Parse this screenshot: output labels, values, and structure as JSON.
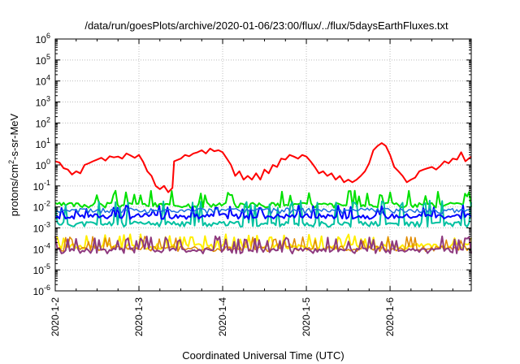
{
  "chart_data": {
    "type": "line",
    "title": "/data/run/goesPlots/archive/2020-01-06/23:00/flux/../flux/5daysEarthFluxes.txt",
    "xlabel": "Coordinated Universal Time (UTC)",
    "ylabel": "protons/cm2-s-sr-MeV",
    "ylabel_parts": {
      "pre": "protons/cm",
      "sup": "2",
      "post": "-s-sr-MeV"
    },
    "ylim": [
      1e-06,
      1000000.0
    ],
    "yscale": "log",
    "xlim": [
      0,
      4.97
    ],
    "grid": true,
    "ytick_exponents": [
      -6,
      -5,
      -4,
      -3,
      -2,
      -1,
      0,
      1,
      2,
      3,
      4,
      5,
      6
    ],
    "xticks": [
      {
        "label": "2020-1-2",
        "x": 0
      },
      {
        "label": "2020-1-3",
        "x": 1
      },
      {
        "label": "2020-1-4",
        "x": 2
      },
      {
        "label": "2020-1-5",
        "x": 3
      },
      {
        "label": "2020-1-6",
        "x": 4
      }
    ],
    "series": [
      {
        "color": "#ff0000",
        "width": 2,
        "points": [
          [
            0,
            1.5
          ],
          [
            0.05,
            1.3
          ],
          [
            0.1,
            0.7
          ],
          [
            0.15,
            0.6
          ],
          [
            0.2,
            0.35
          ],
          [
            0.25,
            0.5
          ],
          [
            0.3,
            0.4
          ],
          [
            0.35,
            1.0
          ],
          [
            0.4,
            1.2
          ],
          [
            0.45,
            1.5
          ],
          [
            0.5,
            1.8
          ],
          [
            0.55,
            2.2
          ],
          [
            0.6,
            1.6
          ],
          [
            0.65,
            2.6
          ],
          [
            0.7,
            2.3
          ],
          [
            0.75,
            2.5
          ],
          [
            0.8,
            2.0
          ],
          [
            0.85,
            3.5
          ],
          [
            0.9,
            2.8
          ],
          [
            0.95,
            2.2
          ],
          [
            1.0,
            3.0
          ],
          [
            1.05,
            1.4
          ],
          [
            1.1,
            0.5
          ],
          [
            1.15,
            0.3
          ],
          [
            1.2,
            0.1
          ],
          [
            1.25,
            0.07
          ],
          [
            1.3,
            0.1
          ],
          [
            1.35,
            0.05
          ],
          [
            1.4,
            0.08
          ],
          [
            1.42,
            1.5
          ],
          [
            1.5,
            2.0
          ],
          [
            1.55,
            3.0
          ],
          [
            1.6,
            2.6
          ],
          [
            1.65,
            3.5
          ],
          [
            1.7,
            4.0
          ],
          [
            1.75,
            5.0
          ],
          [
            1.8,
            3.5
          ],
          [
            1.85,
            6.0
          ],
          [
            1.9,
            4.5
          ],
          [
            1.95,
            5.0
          ],
          [
            2.0,
            4.0
          ],
          [
            2.05,
            2.0
          ],
          [
            2.1,
            1.0
          ],
          [
            2.15,
            0.3
          ],
          [
            2.2,
            0.5
          ],
          [
            2.25,
            0.2
          ],
          [
            2.3,
            0.3
          ],
          [
            2.35,
            0.2
          ],
          [
            2.4,
            0.4
          ],
          [
            2.45,
            0.2
          ],
          [
            2.5,
            0.6
          ],
          [
            2.55,
            0.4
          ],
          [
            2.6,
            1.0
          ],
          [
            2.65,
            0.8
          ],
          [
            2.7,
            2.0
          ],
          [
            2.75,
            1.8
          ],
          [
            2.8,
            3.0
          ],
          [
            2.85,
            2.5
          ],
          [
            2.9,
            2.0
          ],
          [
            2.95,
            3.0
          ],
          [
            3.0,
            2.5
          ],
          [
            3.05,
            1.5
          ],
          [
            3.1,
            0.8
          ],
          [
            3.15,
            0.4
          ],
          [
            3.2,
            0.5
          ],
          [
            3.25,
            0.3
          ],
          [
            3.3,
            0.4
          ],
          [
            3.35,
            0.2
          ],
          [
            3.4,
            0.3
          ],
          [
            3.45,
            0.15
          ],
          [
            3.5,
            0.2
          ],
          [
            3.55,
            0.15
          ],
          [
            3.6,
            0.2
          ],
          [
            3.65,
            0.3
          ],
          [
            3.7,
            0.5
          ],
          [
            3.75,
            1.2
          ],
          [
            3.8,
            5.0
          ],
          [
            3.85,
            8.0
          ],
          [
            3.9,
            11.0
          ],
          [
            3.95,
            8.0
          ],
          [
            4.0,
            3.0
          ],
          [
            4.05,
            0.8
          ],
          [
            4.1,
            0.5
          ],
          [
            4.15,
            0.3
          ],
          [
            4.2,
            0.15
          ],
          [
            4.25,
            0.2
          ],
          [
            4.3,
            0.25
          ],
          [
            4.35,
            0.5
          ],
          [
            4.4,
            0.6
          ],
          [
            4.45,
            0.7
          ],
          [
            4.5,
            0.8
          ],
          [
            4.55,
            0.6
          ],
          [
            4.6,
            0.9
          ],
          [
            4.65,
            1.5
          ],
          [
            4.7,
            1.2
          ],
          [
            4.75,
            2.0
          ],
          [
            4.8,
            1.8
          ],
          [
            4.85,
            4.0
          ],
          [
            4.9,
            1.5
          ],
          [
            4.97,
            2.5
          ]
        ]
      },
      {
        "color": "#00e000",
        "width": 2,
        "base": 0.012,
        "spike": 0.06,
        "seed": 3
      },
      {
        "color": "#00c0a0",
        "width": 2,
        "base": 0.0015,
        "spike": 0.02,
        "seed": 11
      },
      {
        "color": "#0000ff",
        "width": 2,
        "base": 0.0035,
        "spike": 0.012,
        "seed": 7
      },
      {
        "color": "#1a6fdc",
        "width": 1.5,
        "base": 0.0065,
        "spike": 0.0075,
        "seed": 5
      },
      {
        "color": "#ffee00",
        "width": 2,
        "base": 0.00013,
        "spike": 0.0005,
        "seed": 17
      },
      {
        "color": "#e08a00",
        "width": 1.5,
        "base": 0.0001,
        "spike": 0.0004,
        "seed": 23
      },
      {
        "color": "#8e3a7f",
        "width": 2,
        "base": 8e-05,
        "spike": 0.0004,
        "seed": 29
      }
    ]
  }
}
